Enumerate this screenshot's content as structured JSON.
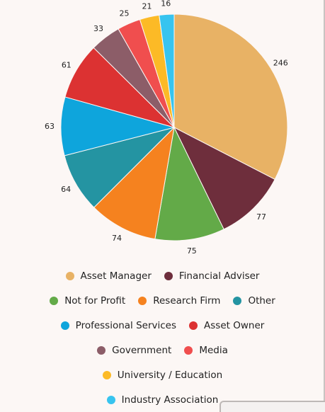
{
  "chart_data": {
    "type": "pie",
    "categories": [
      "Asset Manager",
      "Financial Adviser",
      "Not for Profit",
      "Research Firm",
      "Other",
      "Professional Services",
      "Asset Owner",
      "Government",
      "Media",
      "University / Education",
      "Industry Association"
    ],
    "values": [
      246,
      77,
      75,
      74,
      64,
      63,
      61,
      33,
      25,
      21,
      16
    ],
    "colors": [
      "#e8b265",
      "#6e2e3c",
      "#63aa48",
      "#f5821f",
      "#2494a2",
      "#0ea5dc",
      "#dc3232",
      "#8c5d68",
      "#f04e4e",
      "#fcba26",
      "#37c4ef"
    ],
    "legend": "bottom"
  },
  "legend_rows": [
    [
      {
        "label": "Asset Manager",
        "color": "#e8b265"
      },
      {
        "label": "Financial Adviser",
        "color": "#6e2e3c"
      }
    ],
    [
      {
        "label": "Not for Profit",
        "color": "#63aa48"
      },
      {
        "label": "Research Firm",
        "color": "#f5821f"
      },
      {
        "label": "Other",
        "color": "#2494a2"
      }
    ],
    [
      {
        "label": "Professional Services",
        "color": "#0ea5dc"
      },
      {
        "label": "Asset Owner",
        "color": "#dc3232"
      }
    ],
    [
      {
        "label": "Government",
        "color": "#8c5d68"
      },
      {
        "label": "Media",
        "color": "#f04e4e"
      }
    ],
    [
      {
        "label": "University / Education",
        "color": "#fcba26"
      }
    ],
    [
      {
        "label": "Industry Association",
        "color": "#37c4ef"
      }
    ]
  ]
}
